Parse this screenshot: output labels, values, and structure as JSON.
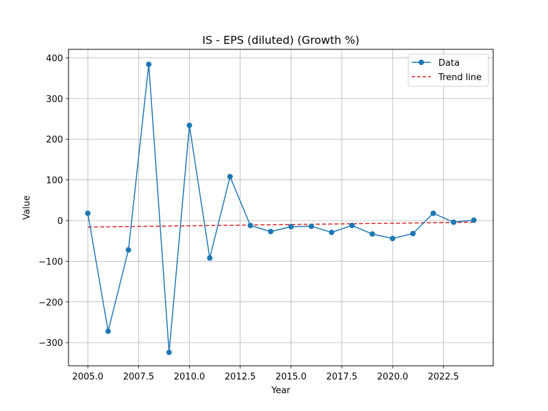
{
  "chart_data": {
    "type": "line",
    "title": "IS - EPS (diluted) (Growth %)",
    "xlabel": "Year",
    "ylabel": "Value",
    "xlim": [
      2004.05,
      2024.95
    ],
    "ylim": [
      -357,
      421
    ],
    "xticks": [
      2005.0,
      2007.5,
      2010.0,
      2012.5,
      2015.0,
      2017.5,
      2020.0,
      2022.5
    ],
    "xtick_labels": [
      "2005.0",
      "2007.5",
      "2010.0",
      "2012.5",
      "2015.0",
      "2017.5",
      "2020.0",
      "2022.5"
    ],
    "yticks": [
      -300,
      -200,
      -100,
      0,
      100,
      200,
      300,
      400
    ],
    "ytick_labels": [
      "−300",
      "−200",
      "−100",
      "0",
      "100",
      "200",
      "300",
      "400"
    ],
    "grid": true,
    "legend_position": "top-right",
    "series": [
      {
        "name": "Data",
        "style": "solid-line-with-circle-markers",
        "color": "#1f77b4",
        "x": [
          2005,
          2006,
          2007,
          2008,
          2009,
          2010,
          2011,
          2012,
          2013,
          2014,
          2015,
          2016,
          2017,
          2018,
          2019,
          2020,
          2021,
          2022,
          2023,
          2024
        ],
        "y": [
          18,
          -272,
          -72,
          384,
          -324,
          234,
          -92,
          108,
          -12,
          -27,
          -15,
          -14,
          -29,
          -12,
          -33,
          -44,
          -32,
          18,
          -4,
          1
        ]
      },
      {
        "name": "Trend line",
        "style": "dashed-line",
        "color": "#d62728",
        "x": [
          2005,
          2024
        ],
        "y": [
          -16,
          -4
        ]
      }
    ]
  }
}
